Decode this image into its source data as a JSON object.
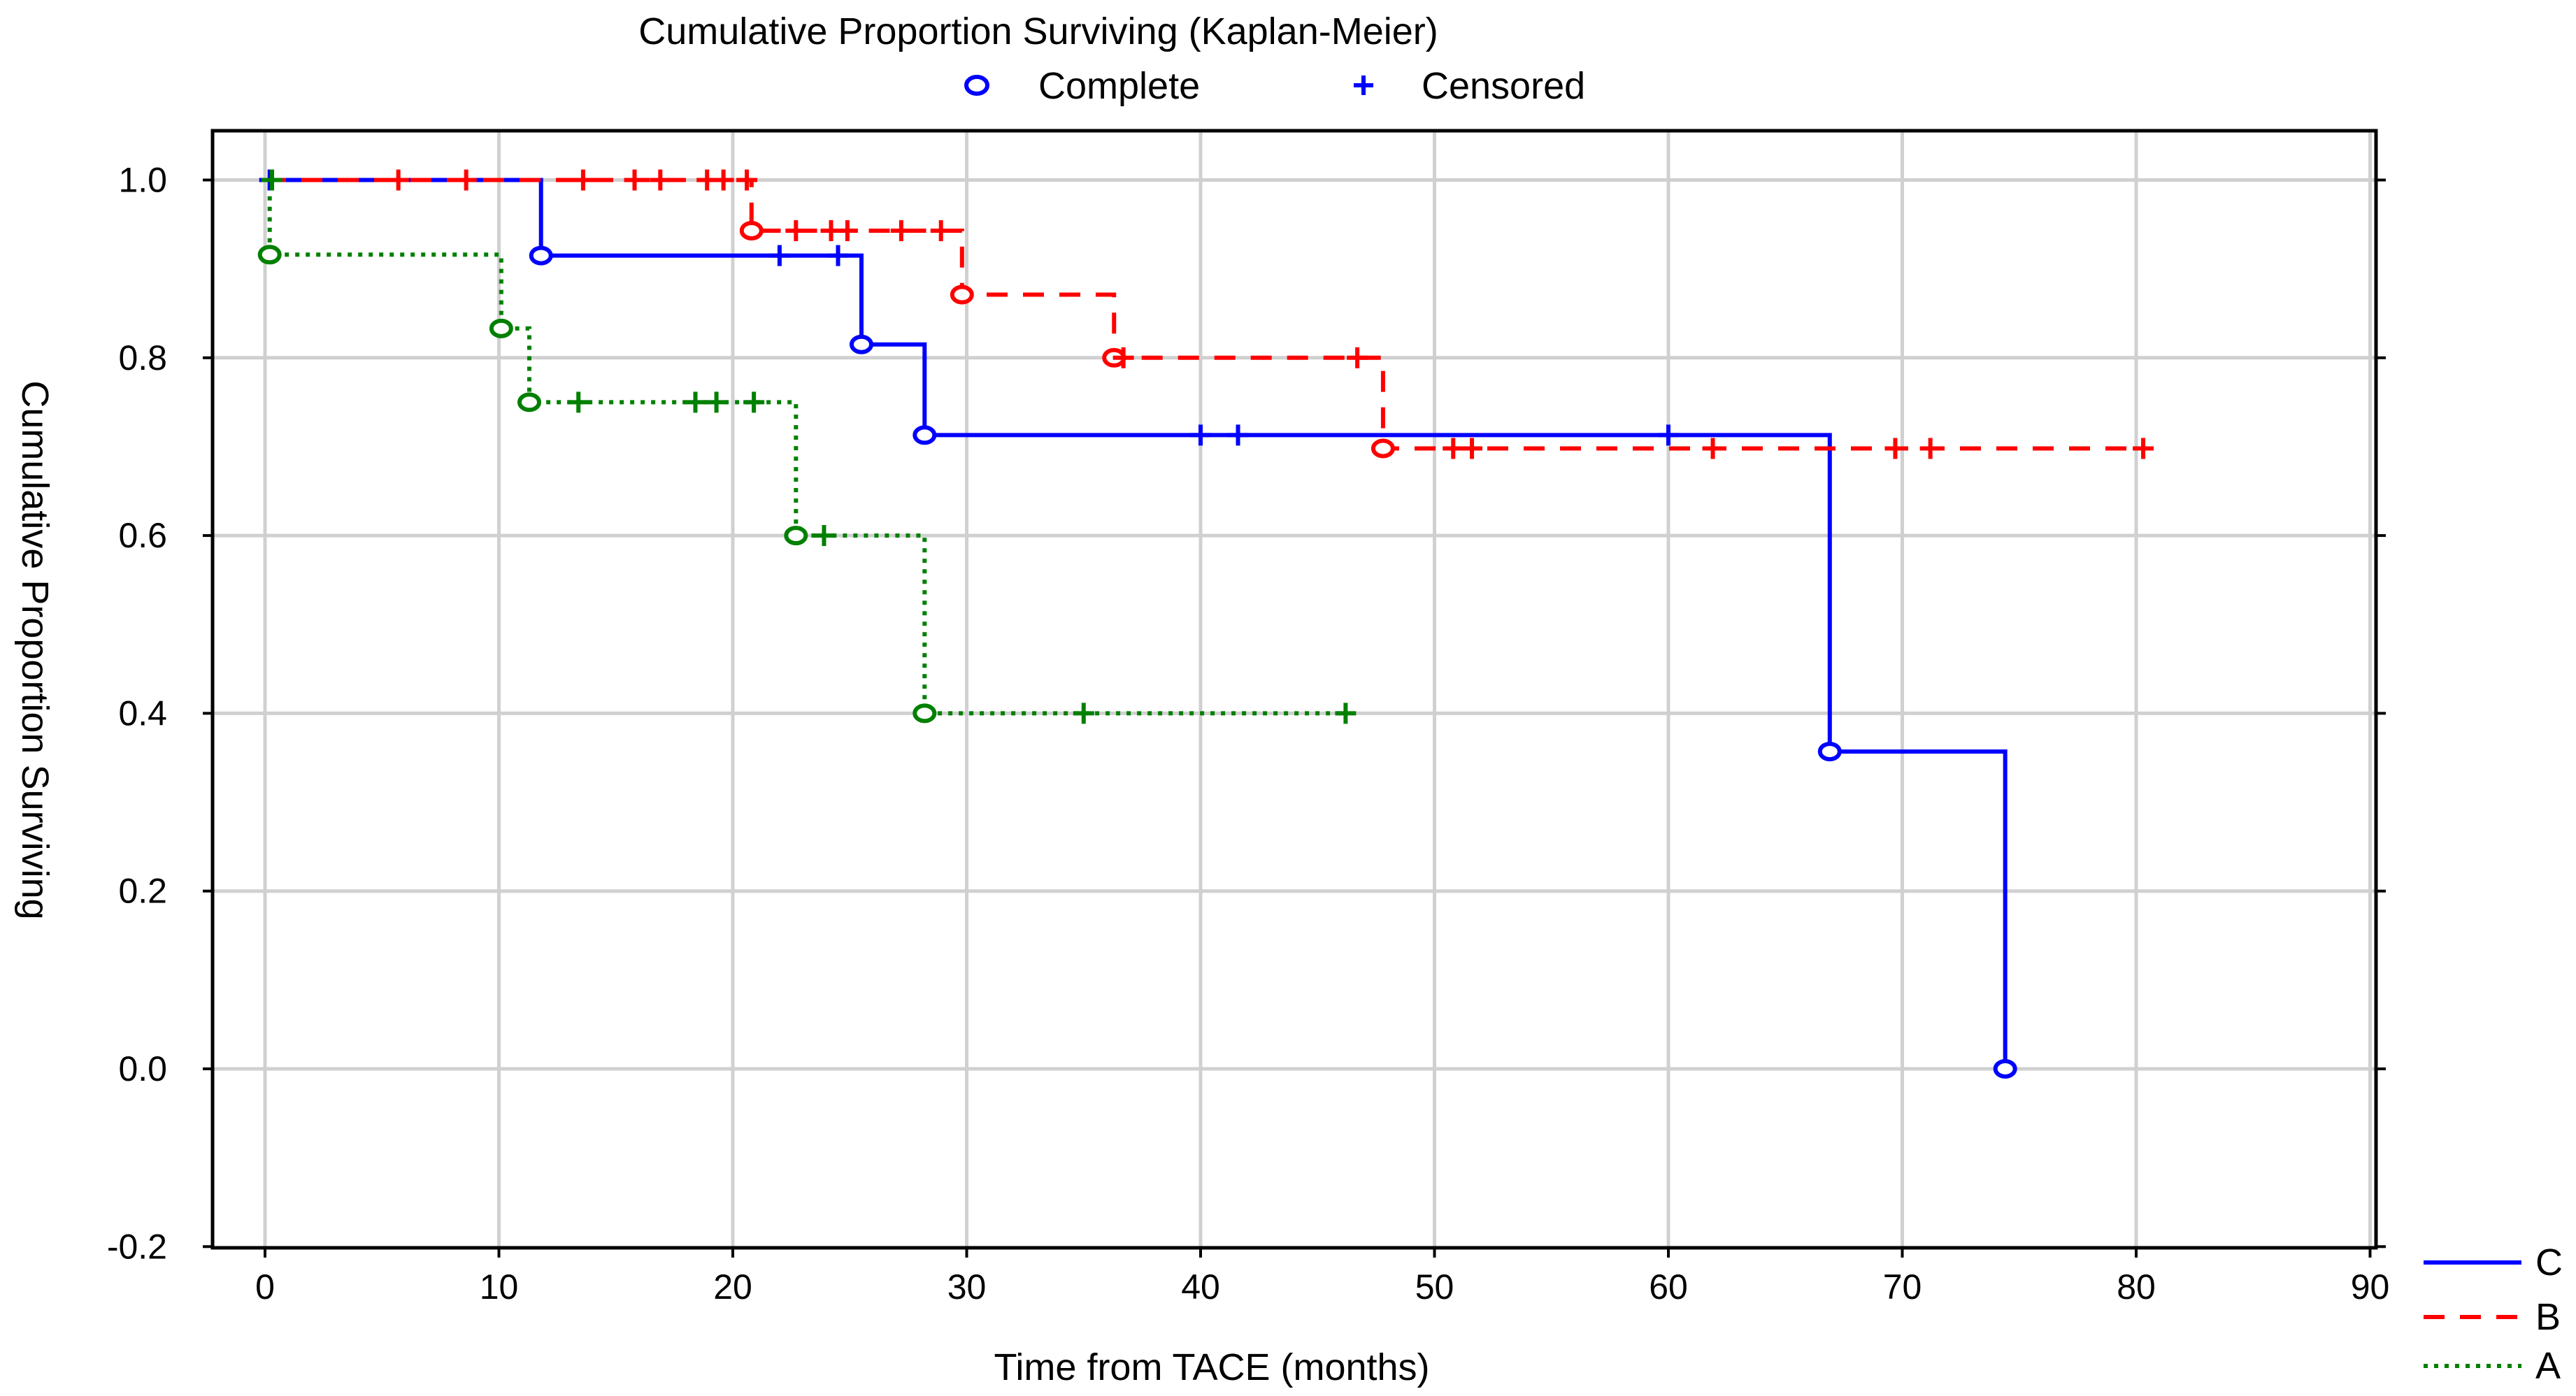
{
  "chart_data": {
    "type": "line",
    "title": "Cumulative Proportion Surviving (Kaplan-Meier)",
    "xlabel": "Time from TACE (months)",
    "ylabel": "Cumulative Proportion Surviving",
    "xlim": [
      -2,
      90
    ],
    "ylim": [
      -0.2,
      1.1
    ],
    "x_ticks": [
      0,
      10,
      20,
      30,
      40,
      50,
      60,
      70,
      80,
      90
    ],
    "y_ticks": [
      -0.2,
      0.0,
      0.2,
      0.4,
      0.6,
      0.8,
      1.0
    ],
    "y_tick_labels": [
      "-0.2",
      "0.0",
      "0.2",
      "0.4",
      "0.6",
      "0.8",
      "1.0"
    ],
    "grid": true,
    "step_curve": true,
    "marker_legend": {
      "position": "top",
      "items": [
        {
          "label": "Complete",
          "marker": "circle",
          "color": "#0000ff"
        },
        {
          "label": "Censored",
          "marker": "plus",
          "color": "#0000ff"
        }
      ]
    },
    "legend_position": "bottom-right",
    "series": [
      {
        "name": "C",
        "color": "#0000ff",
        "line_style": "solid",
        "start": [
          0,
          1.0
        ],
        "steps": [
          [
            11.8,
            0.915
          ],
          [
            25.5,
            0.815
          ],
          [
            28.2,
            0.713
          ],
          [
            66.9,
            0.357
          ],
          [
            74.4,
            0.0
          ]
        ],
        "end_x": 74.4,
        "complete_events": [
          [
            11.8,
            0.915
          ],
          [
            25.5,
            0.815
          ],
          [
            28.2,
            0.713
          ],
          [
            66.9,
            0.357
          ],
          [
            74.4,
            0.0
          ]
        ],
        "censored": [
          [
            0.2,
            1.0
          ],
          [
            22.0,
            0.915
          ],
          [
            24.5,
            0.915
          ],
          [
            40.0,
            0.713
          ],
          [
            41.6,
            0.713
          ],
          [
            60.0,
            0.713
          ]
        ]
      },
      {
        "name": "B",
        "color": "#ff0000",
        "line_style": "dashed",
        "start": [
          0,
          1.0
        ],
        "steps": [
          [
            20.8,
            0.943
          ],
          [
            29.8,
            0.871
          ],
          [
            36.3,
            0.8
          ],
          [
            47.8,
            0.698
          ]
        ],
        "end_x": 80.3,
        "complete_events": [
          [
            20.8,
            0.943
          ],
          [
            29.8,
            0.871
          ],
          [
            36.3,
            0.8
          ],
          [
            47.8,
            0.698
          ]
        ],
        "censored": [
          [
            5.7,
            1.0
          ],
          [
            8.6,
            1.0
          ],
          [
            13.6,
            1.0
          ],
          [
            15.8,
            1.0
          ],
          [
            16.9,
            1.0
          ],
          [
            18.9,
            1.0
          ],
          [
            19.6,
            1.0
          ],
          [
            20.6,
            1.0
          ],
          [
            22.7,
            0.943
          ],
          [
            24.2,
            0.943
          ],
          [
            24.9,
            0.943
          ],
          [
            27.2,
            0.943
          ],
          [
            28.9,
            0.943
          ],
          [
            36.7,
            0.8
          ],
          [
            46.7,
            0.8
          ],
          [
            50.8,
            0.698
          ],
          [
            51.6,
            0.698
          ],
          [
            61.9,
            0.698
          ],
          [
            69.7,
            0.698
          ],
          [
            71.2,
            0.698
          ],
          [
            80.3,
            0.698
          ]
        ]
      },
      {
        "name": "A",
        "color": "#008000",
        "line_style": "dotted",
        "start": [
          0,
          1.0
        ],
        "steps": [
          [
            0.2,
            0.916
          ],
          [
            10.1,
            0.833
          ],
          [
            11.3,
            0.75
          ],
          [
            22.7,
            0.6
          ],
          [
            28.2,
            0.4
          ]
        ],
        "end_x": 46.2,
        "complete_events": [
          [
            0.2,
            0.916
          ],
          [
            10.1,
            0.833
          ],
          [
            11.3,
            0.75
          ],
          [
            22.7,
            0.6
          ],
          [
            28.2,
            0.4
          ]
        ],
        "censored": [
          [
            0.3,
            1.0
          ],
          [
            13.4,
            0.75
          ],
          [
            18.4,
            0.75
          ],
          [
            19.3,
            0.75
          ],
          [
            20.9,
            0.75
          ],
          [
            23.9,
            0.6
          ],
          [
            35.0,
            0.4
          ],
          [
            46.2,
            0.4
          ]
        ]
      }
    ]
  }
}
